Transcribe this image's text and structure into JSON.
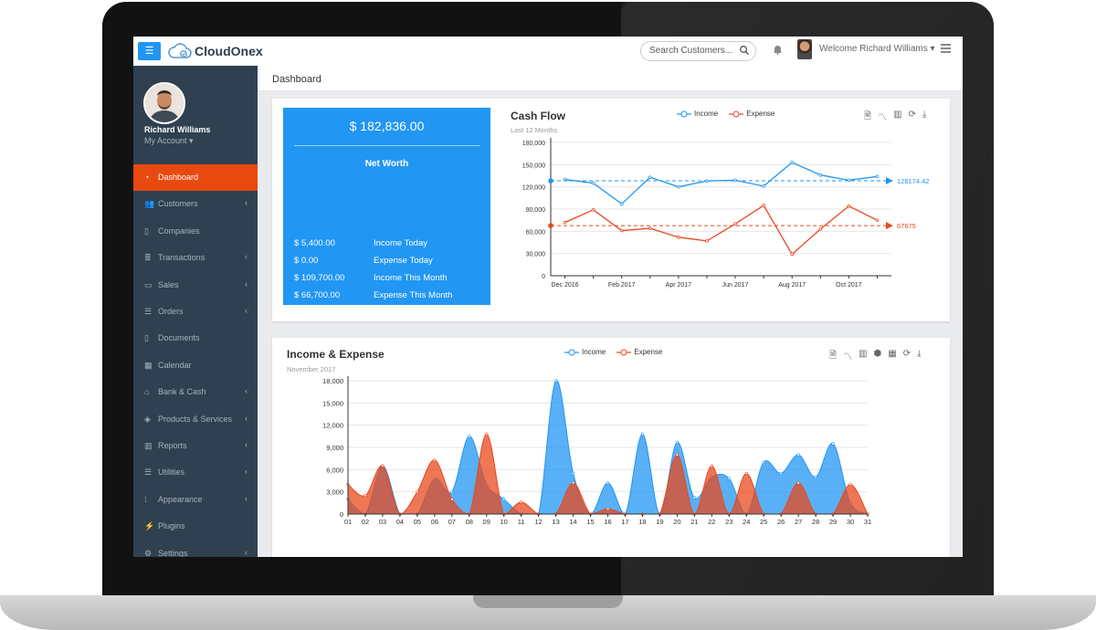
{
  "app": {
    "name": "CloudOnex"
  },
  "topbar": {
    "search_placeholder": "Search Customers...",
    "welcome": "Welcome Richard Williams ▾"
  },
  "user": {
    "name": "Richard Williams",
    "account": "My Account ▾"
  },
  "sidebar": {
    "items": [
      {
        "label": "Dashboard",
        "icon": "dashboard-icon",
        "active": true,
        "chevron": false
      },
      {
        "label": "Customers",
        "icon": "users-icon",
        "chevron": true
      },
      {
        "label": "Companies",
        "icon": "building-icon",
        "chevron": false
      },
      {
        "label": "Transactions",
        "icon": "database-icon",
        "chevron": true
      },
      {
        "label": "Sales",
        "icon": "credit-card-icon",
        "chevron": true
      },
      {
        "label": "Orders",
        "icon": "list-icon",
        "chevron": true
      },
      {
        "label": "Documents",
        "icon": "file-icon",
        "chevron": false
      },
      {
        "label": "Calendar",
        "icon": "calendar-icon",
        "chevron": false
      },
      {
        "label": "Bank & Cash",
        "icon": "bank-icon",
        "chevron": true
      },
      {
        "label": "Products & Services",
        "icon": "cube-icon",
        "chevron": true
      },
      {
        "label": "Reports",
        "icon": "bar-chart-icon",
        "chevron": true
      },
      {
        "label": "Utilities",
        "icon": "sliders-icon",
        "chevron": true
      },
      {
        "label": "Appearance",
        "icon": "palette-icon",
        "chevron": true
      },
      {
        "label": "Plugins",
        "icon": "plug-icon",
        "chevron": false
      },
      {
        "label": "Settings",
        "icon": "gears-icon",
        "chevron": true
      }
    ]
  },
  "page": {
    "title": "Dashboard"
  },
  "networth": {
    "amount": "$ 182,836.00",
    "label": "Net Worth",
    "rows": [
      {
        "value": "$ 5,400.00",
        "label": "Income Today"
      },
      {
        "value": "$ 0.00",
        "label": "Expense Today"
      },
      {
        "value": "$ 109,700.00",
        "label": "Income This Month"
      },
      {
        "value": "$ 66,700.00",
        "label": "Expense This Month"
      }
    ]
  },
  "colors": {
    "income": "#2196f3",
    "expense": "#e8491d",
    "accent": "#2196f3",
    "sidebar": "#2f4050",
    "active": "#e8490f"
  },
  "cashflow": {
    "title": "Cash Flow",
    "subtitle": "Last 12 Months",
    "legend": [
      "Income",
      "Expense"
    ],
    "avg_income_label": "128174.42",
    "avg_expense_label": "67675",
    "toolbox": [
      "file-icon",
      "line-chart-icon",
      "bar-chart-icon",
      "refresh-icon",
      "download-icon"
    ]
  },
  "incexp": {
    "title": "Income & Expense",
    "subtitle": "November 2017",
    "legend": [
      "Income",
      "Expense"
    ],
    "toolbox": [
      "file-icon",
      "line-chart-icon",
      "bar-chart-icon",
      "stack-icon",
      "tiles-icon",
      "refresh-icon",
      "download-icon"
    ]
  },
  "chart_data": [
    {
      "type": "line",
      "title": "Cash Flow",
      "subtitle": "Last 12 Months",
      "x": [
        "Dec 2016",
        "Jan 2017",
        "Feb 2017",
        "Mar 2017",
        "Apr 2017",
        "May 2017",
        "Jun 2017",
        "Jul 2017",
        "Aug 2017",
        "Sep 2017",
        "Oct 2017",
        "Nov 2017"
      ],
      "xticks": [
        "Dec 2016",
        "Feb 2017",
        "Apr 2017",
        "Jun 2017",
        "Aug 2017",
        "Oct 2017"
      ],
      "yticks": [
        0,
        30000,
        60000,
        90000,
        120000,
        150000,
        180000
      ],
      "ytick_labels": [
        "0",
        "30,000",
        "60,000",
        "90,000",
        "120,000",
        "150,000",
        "180,000"
      ],
      "ylim": [
        0,
        180000
      ],
      "grid": true,
      "legend": "top-center",
      "series": [
        {
          "name": "Income",
          "values": [
            130000,
            125000,
            97000,
            133000,
            120000,
            128000,
            129000,
            121000,
            153000,
            136000,
            129000,
            134000
          ],
          "mark_line": 128174.42
        },
        {
          "name": "Expense",
          "values": [
            72000,
            89000,
            61000,
            64000,
            52000,
            47000,
            70000,
            95000,
            29000,
            63000,
            94000,
            75000
          ],
          "mark_line": 67675
        }
      ]
    },
    {
      "type": "area",
      "title": "Income & Expense",
      "subtitle": "November 2017",
      "x": [
        "01",
        "02",
        "03",
        "04",
        "05",
        "06",
        "07",
        "08",
        "09",
        "10",
        "11",
        "12",
        "13",
        "14",
        "15",
        "16",
        "17",
        "18",
        "19",
        "20",
        "21",
        "22",
        "23",
        "24",
        "25",
        "26",
        "27",
        "28",
        "29",
        "30",
        "31"
      ],
      "yticks": [
        0,
        3000,
        6000,
        9000,
        12000,
        15000,
        18000
      ],
      "ytick_labels": [
        "0",
        "3,000",
        "6,000",
        "9,000",
        "12,000",
        "15,000",
        "18,000"
      ],
      "ylim": [
        0,
        18000
      ],
      "grid": true,
      "legend": "top-center",
      "series": [
        {
          "name": "Income",
          "values": [
            2000,
            0,
            6500,
            0,
            0,
            4800,
            3000,
            10500,
            4000,
            2000,
            0,
            0,
            18000,
            5500,
            0,
            4200,
            0,
            10800,
            0,
            9700,
            2200,
            5000,
            4800,
            0,
            7000,
            5500,
            8000,
            5000,
            9500,
            1500,
            0
          ]
        },
        {
          "name": "Expense",
          "values": [
            4000,
            2500,
            6500,
            0,
            3000,
            7300,
            2000,
            0,
            10800,
            0,
            1600,
            0,
            0,
            4200,
            0,
            700,
            0,
            0,
            0,
            8000,
            0,
            6500,
            0,
            5500,
            0,
            0,
            4200,
            0,
            0,
            4000,
            0
          ]
        }
      ]
    }
  ]
}
